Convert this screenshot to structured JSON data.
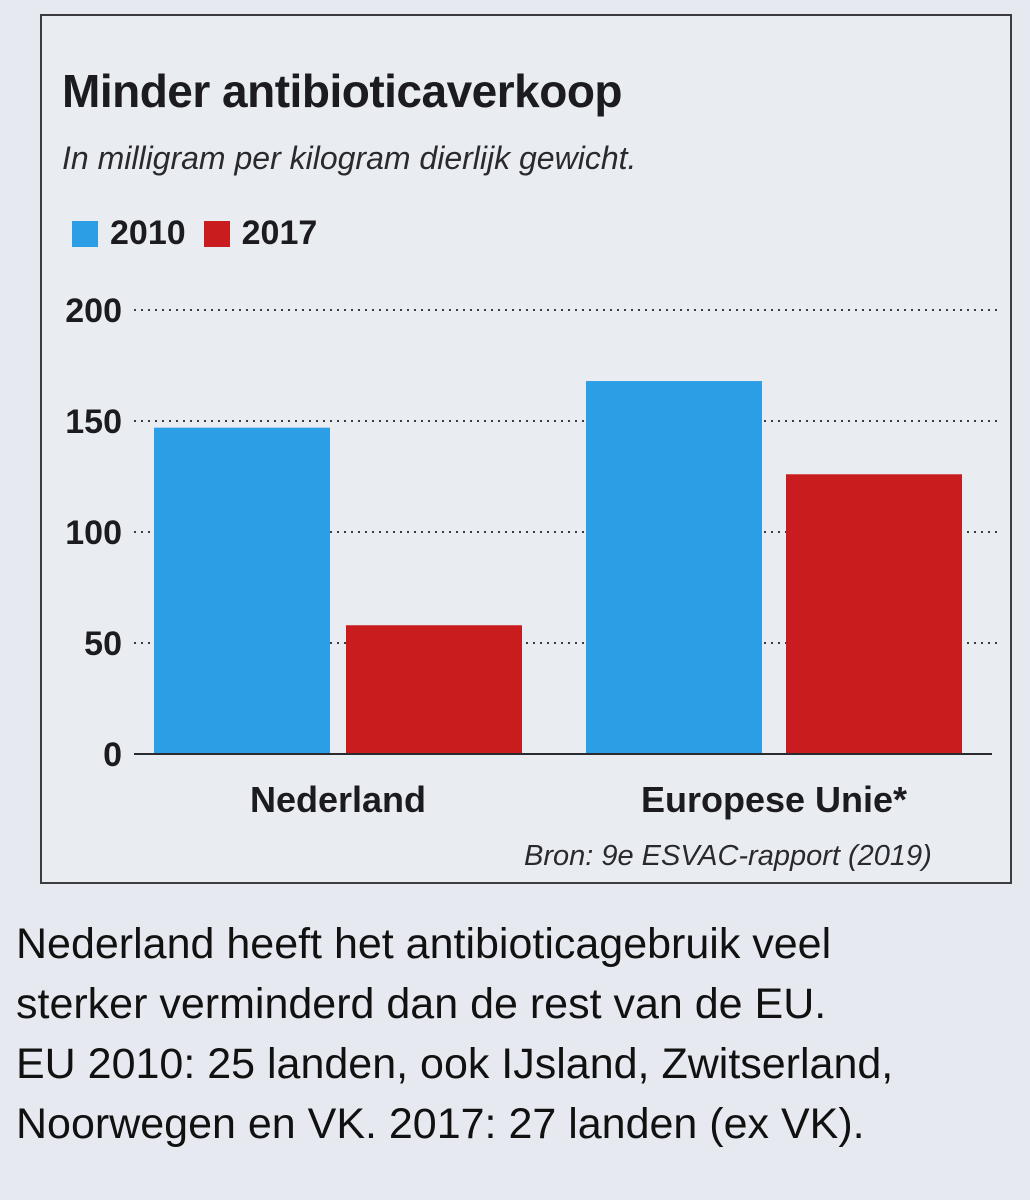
{
  "chart_data": {
    "type": "bar",
    "title": "Minder antibioticaverkoop",
    "subtitle": "In milligram per kilogram dierlijk gewicht.",
    "categories": [
      "Nederland",
      "Europese Unie*"
    ],
    "series": [
      {
        "name": "2010",
        "color": "#2c9ee6",
        "values": [
          147,
          168
        ]
      },
      {
        "name": "2017",
        "color": "#c81c1f",
        "values": [
          58,
          126
        ]
      }
    ],
    "y_ticks": [
      "0",
      "50",
      "100",
      "150",
      "200"
    ],
    "ylim": [
      0,
      200
    ],
    "grid": "dotted horizontal",
    "legend": "top-left",
    "source": "Bron:  9e ESVAC-rapport (2019)"
  },
  "caption": {
    "lines": [
      "Nederland heeft het antibioticagebruik veel",
      "sterker verminderd dan de rest van de EU.",
      "EU 2010: 25 landen, ook IJsland, Zwitserland,",
      "Noorwegen en VK. 2017: 27 landen (ex VK)."
    ]
  }
}
